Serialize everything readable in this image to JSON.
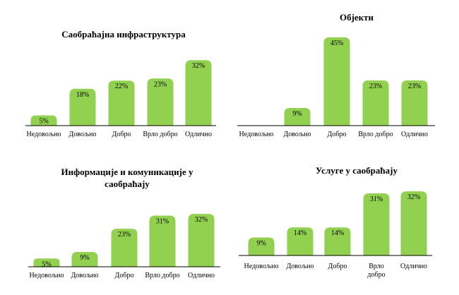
{
  "colors": {
    "bar": "#92d050",
    "axis": "#000000",
    "text": "#000000"
  },
  "chart_data": [
    {
      "type": "bar",
      "title": "Саобраћајна инфраструктура",
      "categories": [
        "Недовољно",
        "Довољно",
        "Добро",
        "Врло добро",
        "Одлично"
      ],
      "values": [
        5,
        18,
        22,
        23,
        32
      ],
      "labels": [
        "5%",
        "18%",
        "22%",
        "23%",
        "32%"
      ],
      "ylim": [
        0,
        32
      ],
      "legend": "none",
      "grid": false
    },
    {
      "type": "bar",
      "title": "Објекти",
      "categories": [
        "Недовољно",
        "Довољно",
        "Добро",
        "Врло добро",
        "Одлично"
      ],
      "values": [
        0,
        9,
        45,
        23,
        23
      ],
      "labels": [
        "",
        "9%",
        "45%",
        "23%",
        "23%"
      ],
      "ylim": [
        0,
        45
      ],
      "legend": "none",
      "grid": false
    },
    {
      "type": "bar",
      "title": "Информације и комуникације у саобраћају",
      "categories": [
        "Недовољно",
        "Довољно",
        "Добро",
        "Врло добро",
        "Одлично"
      ],
      "values": [
        5,
        9,
        23,
        31,
        32
      ],
      "labels": [
        "5%",
        "9%",
        "23%",
        "31%",
        "32%"
      ],
      "ylim": [
        0,
        32
      ],
      "legend": "none",
      "grid": false
    },
    {
      "type": "bar",
      "title": "Услуге у саобраћају",
      "categories": [
        "Недовољно",
        "Довољно",
        "Добро",
        "Врло добро",
        "Одлично"
      ],
      "values": [
        9,
        14,
        14,
        31,
        32
      ],
      "labels": [
        "9%",
        "14%",
        "14%",
        "31%",
        "32%"
      ],
      "ylim": [
        0,
        32
      ],
      "legend": "none",
      "grid": false
    }
  ]
}
